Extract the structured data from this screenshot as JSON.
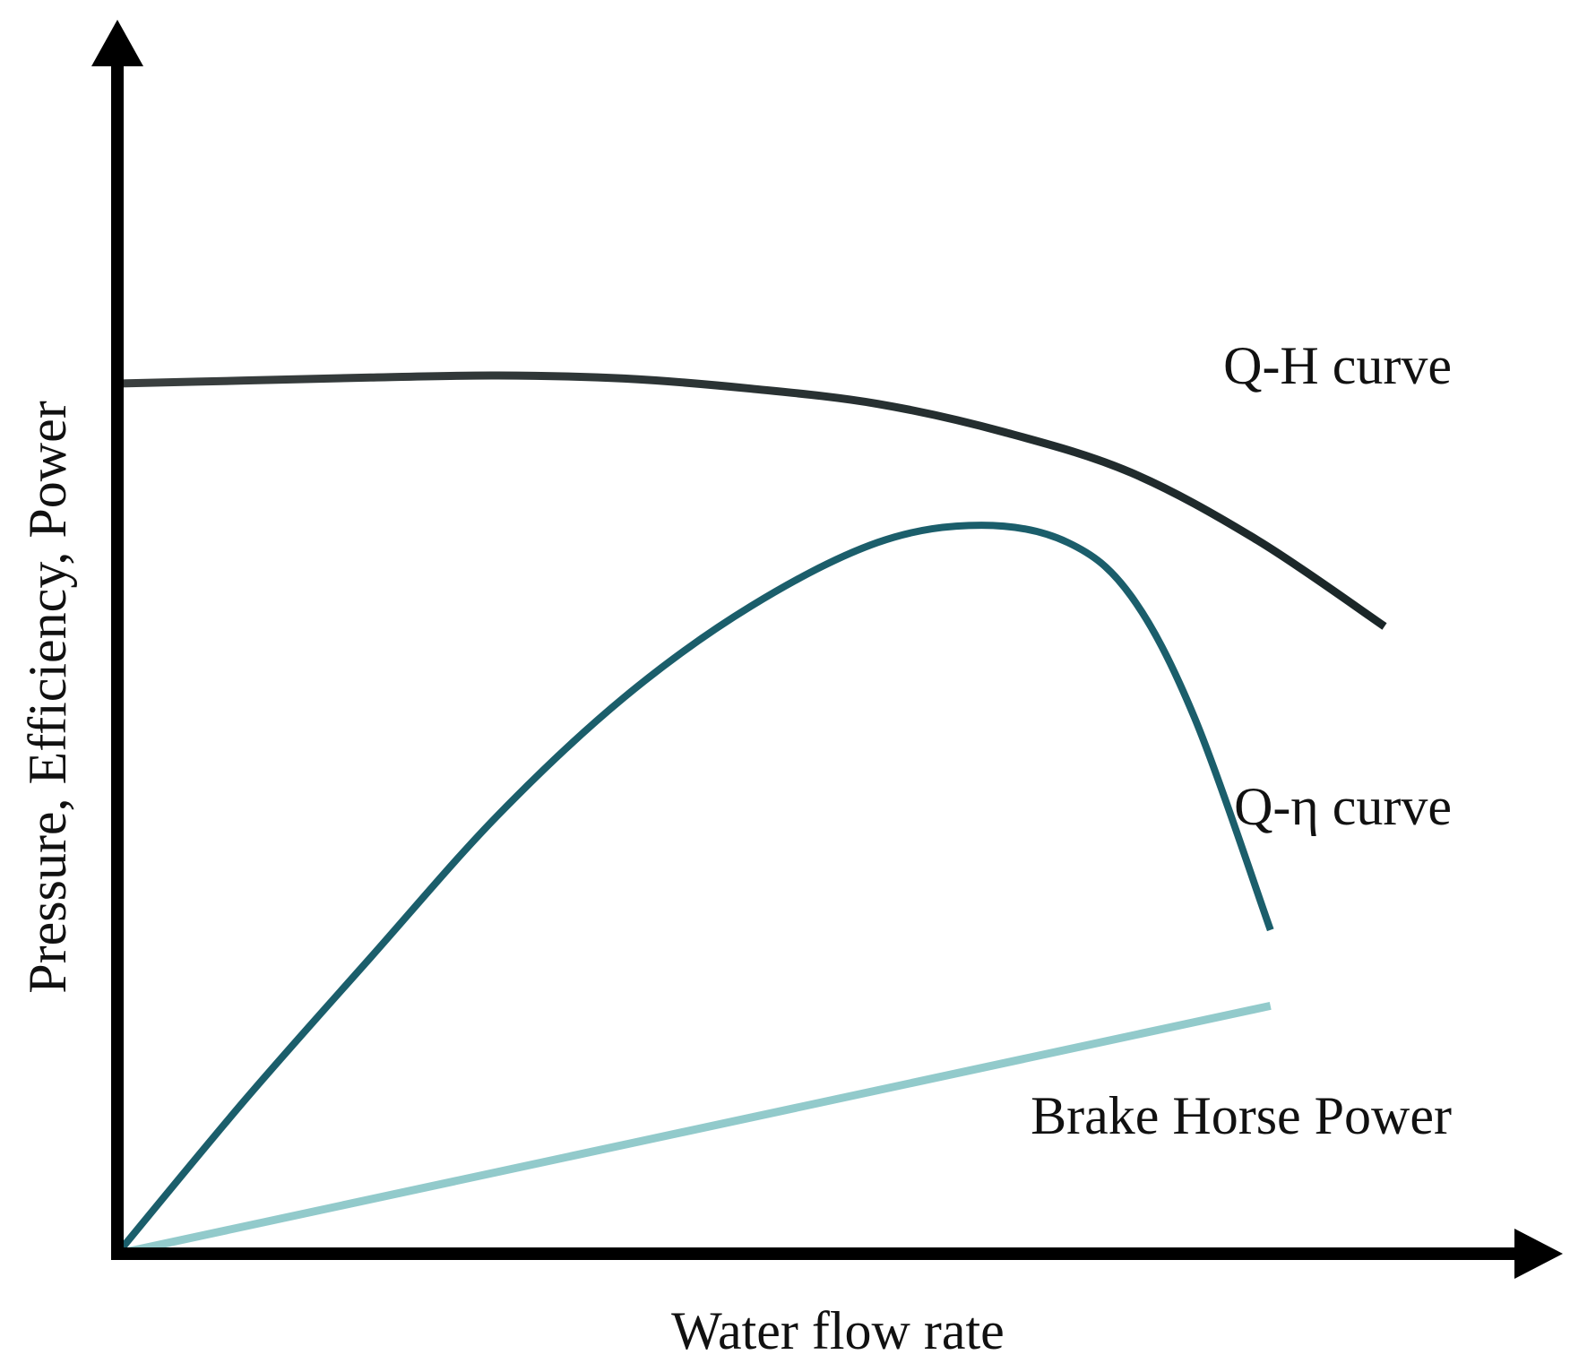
{
  "chart_data": {
    "type": "line",
    "title": "",
    "xlabel": "Water flow rate",
    "ylabel": "Pressure, Efficiency, Power",
    "xlim": [
      0,
      1000
    ],
    "ylim": [
      0,
      1000
    ],
    "grid": false,
    "axes_style": "arrows, no ticks",
    "series": [
      {
        "name": "Q-H curve",
        "color": "#1f2c2d",
        "x": [
          0,
          100,
          200,
          300,
          400,
          500,
          600,
          700,
          800,
          900,
          1000
        ],
        "y": [
          860,
          863,
          866,
          868,
          865,
          855,
          840,
          812,
          772,
          705,
          620
        ]
      },
      {
        "name": "Q-η curve",
        "color": "#1b5e6b",
        "x": [
          0,
          100,
          200,
          300,
          400,
          500,
          600,
          682,
          750,
          800,
          850,
          910
        ],
        "y": [
          0,
          151,
          293,
          433,
          550,
          640,
          703,
          720,
          703,
          650,
          530,
          320
        ]
      },
      {
        "name": "Brake Horse Power",
        "color": "#92cacb",
        "x": [
          0,
          910
        ],
        "y": [
          0,
          245
        ]
      }
    ]
  }
}
